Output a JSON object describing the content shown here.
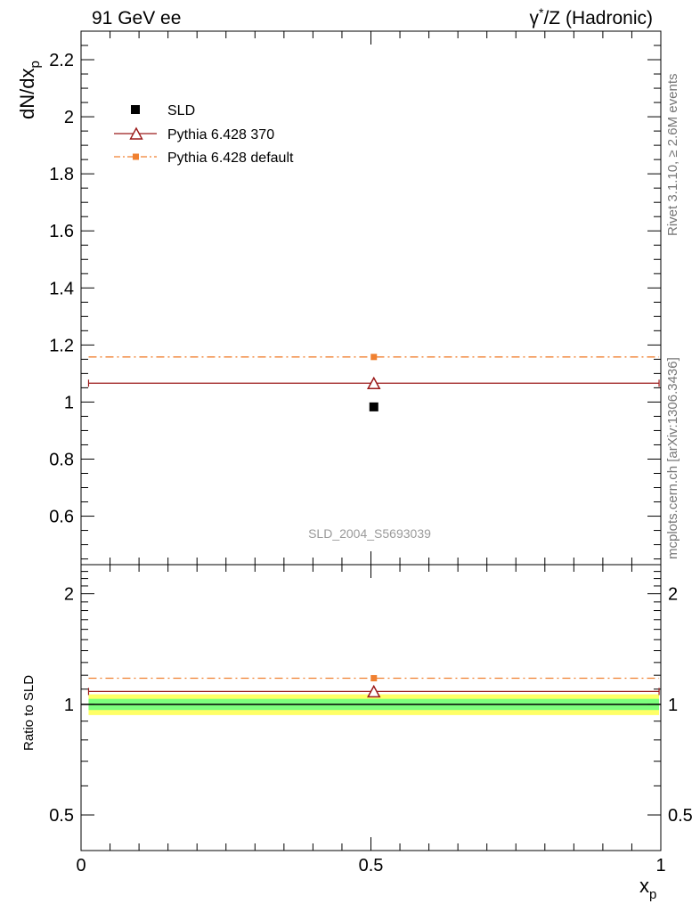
{
  "header": {
    "left": "91 GeV ee",
    "right_symbol": "γ",
    "right_sup": "*",
    "right_rest": "/Z (Hadronic)"
  },
  "side_text": {
    "rivet": "Rivet 3.1.10, ≥ 2.6M events",
    "mcplots": "mcplots.cern.ch [arXiv:1306.3436]"
  },
  "reference": "SLD_2004_S5693039",
  "colors": {
    "data": "#000000",
    "mc1": "#9b1a1a",
    "mc2": "#f08030",
    "band_inner": "#7dff7d",
    "band_outer": "#ffff66"
  },
  "chart_data": [
    {
      "type": "scatter",
      "panel": "main",
      "ylabel": "dN/dx",
      "ylabel_sub": "p",
      "xlim": [
        0,
        1
      ],
      "ylim": [
        0.43,
        2.3
      ],
      "yticks": [
        0.6,
        0.8,
        1.0,
        1.2,
        1.4,
        1.6,
        1.8,
        2.0,
        2.2
      ],
      "ytick_labels": [
        "0.6",
        "0.8",
        "1",
        "1.2",
        "1.4",
        "1.6",
        "1.8",
        "2",
        "2.2"
      ],
      "series": [
        {
          "name": "SLD",
          "marker": "square",
          "x": [
            0.505
          ],
          "y": [
            0.983
          ]
        },
        {
          "name": "Pythia 6.428 370",
          "marker": "triangle-open",
          "style": "solid",
          "x": [
            0.505
          ],
          "y": [
            1.066
          ],
          "xerr_range": [
            0.013,
            0.997
          ]
        },
        {
          "name": "Pythia 6.428 default",
          "marker": "square-small",
          "style": "dashdot",
          "x": [
            0.505
          ],
          "y": [
            1.158
          ],
          "xerr_range": [
            0.013,
            0.997
          ]
        }
      ]
    },
    {
      "type": "scatter",
      "panel": "ratio",
      "ylabel": "Ratio to SLD",
      "yscale": "log",
      "xlabel": "x",
      "xlabel_sub": "p",
      "xlim": [
        0,
        1
      ],
      "ylim": [
        0.4,
        2.4
      ],
      "xticks": [
        0,
        0.5,
        1
      ],
      "xtick_labels": [
        "0",
        "0.5",
        "1"
      ],
      "yticks": [
        0.5,
        1,
        2
      ],
      "ytick_labels": [
        "0.5",
        "1",
        "2"
      ],
      "band_inner": [
        0.965,
        1.035
      ],
      "band_outer": [
        0.935,
        1.065
      ],
      "series": [
        {
          "name": "Pythia 6.428 370",
          "marker": "triangle-open",
          "style": "solid",
          "x": [
            0.505
          ],
          "y": [
            1.084
          ]
        },
        {
          "name": "Pythia 6.428 default",
          "marker": "square-small",
          "style": "dashdot",
          "x": [
            0.505
          ],
          "y": [
            1.178
          ]
        }
      ]
    }
  ]
}
